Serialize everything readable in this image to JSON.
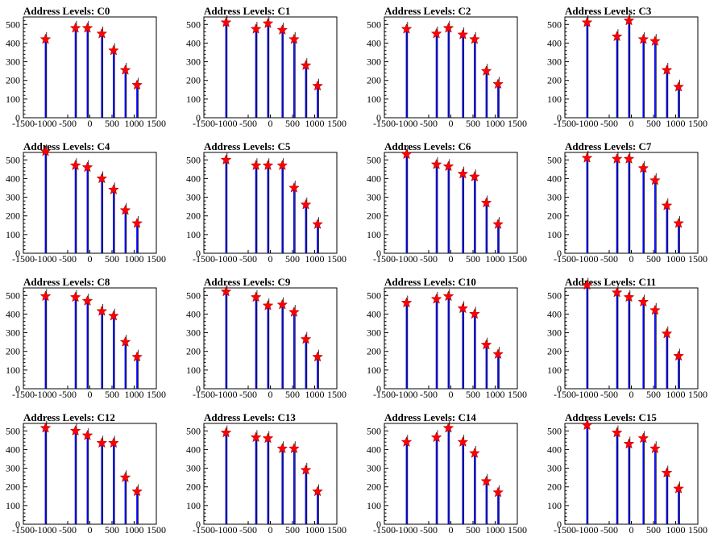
{
  "chart_data": {
    "type": "bar",
    "xlim": [
      -1500,
      1500
    ],
    "ylim": [
      0,
      540
    ],
    "x_ticks": [
      -1500,
      -1000,
      -500,
      0,
      500,
      1000,
      1500
    ],
    "x_tick_labels": [
      "-1500",
      "-1000",
      "-500",
      "0",
      "500",
      "1000",
      "1500"
    ],
    "y_ticks": [
      0,
      100,
      200,
      300,
      400,
      500
    ],
    "y_tick_labels": [
      "0",
      "100",
      "200",
      "300",
      "400",
      "500"
    ],
    "marker_color": "#ff0000",
    "bar_color": "#0000ff",
    "panels": [
      {
        "title": "Address Levels: C0",
        "peak_x": [
          -1000,
          -325,
          -55,
          270,
          535,
          800,
          1065
        ],
        "peak_y": [
          420,
          480,
          480,
          450,
          360,
          255,
          175
        ]
      },
      {
        "title": "Address Levels: C1",
        "peak_x": [
          -1000,
          -325,
          -55,
          270,
          535,
          800,
          1065
        ],
        "peak_y": [
          510,
          475,
          505,
          470,
          420,
          280,
          170
        ]
      },
      {
        "title": "Address Levels: C2",
        "peak_x": [
          -1000,
          -325,
          -55,
          270,
          535,
          800,
          1065
        ],
        "peak_y": [
          475,
          450,
          480,
          445,
          420,
          250,
          180
        ]
      },
      {
        "title": "Address Levels: C3",
        "peak_x": [
          -1000,
          -325,
          -55,
          270,
          535,
          800,
          1065
        ],
        "peak_y": [
          510,
          435,
          520,
          420,
          410,
          255,
          165
        ]
      },
      {
        "title": "Address Levels: C4",
        "peak_x": [
          -1000,
          -325,
          -55,
          270,
          535,
          800,
          1065
        ],
        "peak_y": [
          545,
          470,
          460,
          400,
          340,
          230,
          160
        ]
      },
      {
        "title": "Address Levels: C5",
        "peak_x": [
          -1000,
          -325,
          -55,
          270,
          535,
          800,
          1065
        ],
        "peak_y": [
          500,
          470,
          470,
          470,
          350,
          260,
          155
        ]
      },
      {
        "title": "Address Levels: C6",
        "peak_x": [
          -1000,
          -325,
          -55,
          270,
          535,
          800,
          1065
        ],
        "peak_y": [
          530,
          475,
          465,
          425,
          410,
          270,
          155
        ]
      },
      {
        "title": "Address Levels: C7",
        "peak_x": [
          -1000,
          -325,
          -55,
          270,
          535,
          800,
          1065
        ],
        "peak_y": [
          510,
          505,
          505,
          455,
          390,
          255,
          160
        ]
      },
      {
        "title": "Address Levels: C8",
        "peak_x": [
          -1000,
          -325,
          -55,
          270,
          535,
          800,
          1065
        ],
        "peak_y": [
          495,
          490,
          470,
          415,
          390,
          250,
          170
        ]
      },
      {
        "title": "Address Levels: C9",
        "peak_x": [
          -1000,
          -325,
          -55,
          270,
          535,
          800,
          1065
        ],
        "peak_y": [
          520,
          490,
          445,
          450,
          410,
          265,
          170
        ]
      },
      {
        "title": "Address Levels: C10",
        "peak_x": [
          -1000,
          -325,
          -55,
          270,
          535,
          800,
          1065
        ],
        "peak_y": [
          460,
          480,
          495,
          430,
          400,
          235,
          185
        ]
      },
      {
        "title": "Address Levels: C11",
        "peak_x": [
          -1000,
          -325,
          -55,
          270,
          535,
          800,
          1065
        ],
        "peak_y": [
          555,
          515,
          490,
          465,
          420,
          295,
          175
        ]
      },
      {
        "title": "Address Levels: C12",
        "peak_x": [
          -1000,
          -325,
          -55,
          270,
          535,
          800,
          1065
        ],
        "peak_y": [
          515,
          500,
          475,
          435,
          435,
          250,
          175
        ]
      },
      {
        "title": "Address Levels: C13",
        "peak_x": [
          -1000,
          -325,
          -55,
          270,
          535,
          800,
          1065
        ],
        "peak_y": [
          490,
          465,
          460,
          405,
          405,
          290,
          175
        ]
      },
      {
        "title": "Address Levels: C14",
        "peak_x": [
          -1000,
          -325,
          -55,
          270,
          535,
          800,
          1065
        ],
        "peak_y": [
          440,
          465,
          515,
          440,
          380,
          230,
          170
        ]
      },
      {
        "title": "Address Levels: C15",
        "peak_x": [
          -1000,
          -325,
          -55,
          270,
          535,
          800,
          1065
        ],
        "peak_y": [
          530,
          490,
          430,
          460,
          405,
          275,
          190
        ]
      }
    ]
  }
}
